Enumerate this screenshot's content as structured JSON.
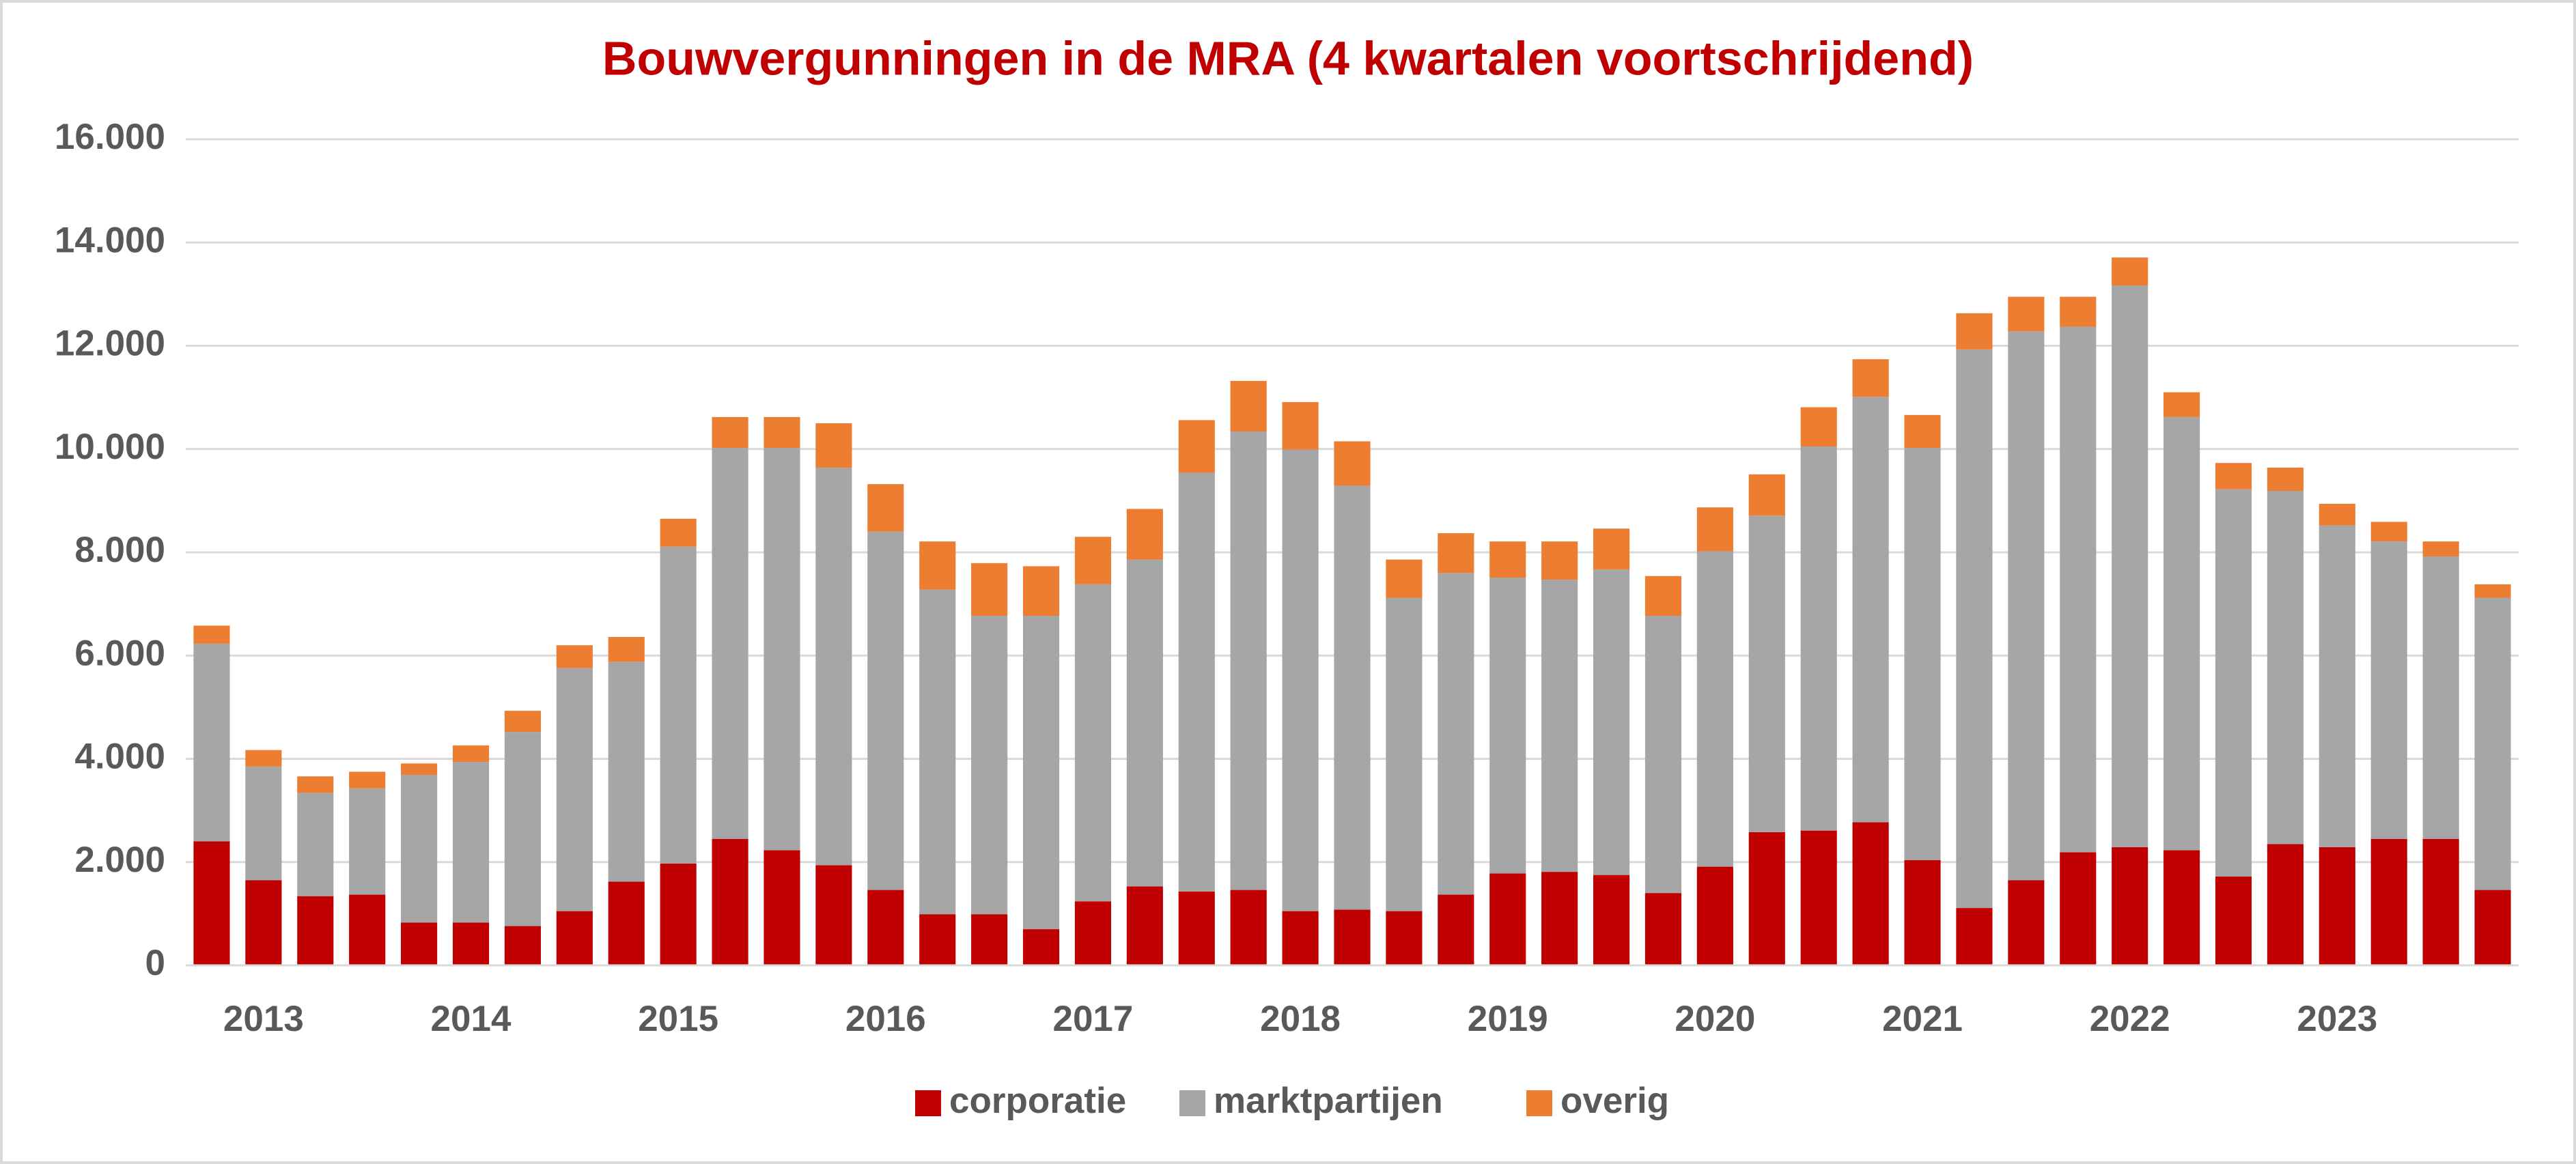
{
  "chart_data": {
    "type": "stacked_bar",
    "title": "Bouwvergunningen in de MRA (4 kwartalen voortschrijdend)",
    "categories": [
      null,
      "2013",
      null,
      null,
      null,
      "2014",
      null,
      null,
      null,
      "2015",
      null,
      null,
      null,
      "2016",
      null,
      null,
      null,
      "2017",
      null,
      null,
      null,
      "2018",
      null,
      null,
      null,
      "2019",
      null,
      null,
      null,
      "2020",
      null,
      null,
      null,
      "2021",
      null,
      null,
      null,
      "2022",
      null,
      null,
      null,
      "2023",
      null,
      null,
      null
    ],
    "series": [
      {
        "name": "corporatie",
        "color": "#c00000",
        "values": [
          2400,
          1650,
          1340,
          1370,
          830,
          830,
          760,
          1050,
          1620,
          1970,
          2450,
          2230,
          1940,
          1460,
          990,
          990,
          700,
          1240,
          1530,
          1430,
          1460,
          1050,
          1080,
          1050,
          1370,
          1780,
          1810,
          1750,
          1400,
          1910,
          2580,
          2610,
          2770,
          2040,
          1110,
          1650,
          2190,
          2290,
          2230,
          1720,
          2350,
          2290,
          2450,
          2450,
          1460
        ]
      },
      {
        "name": "marktpartijen",
        "color": "#a6a6a6",
        "values": [
          3830,
          2200,
          2000,
          2060,
          2860,
          3110,
          3760,
          4710,
          4260,
          6140,
          7570,
          7790,
          7700,
          6940,
          6290,
          5780,
          6070,
          6140,
          6330,
          8110,
          8880,
          8940,
          8210,
          6070,
          6230,
          5730,
          5660,
          5920,
          5370,
          6110,
          6130,
          7440,
          8240,
          7980,
          10820,
          10630,
          10180,
          10880,
          8390,
          7500,
          6840,
          6230,
          5760,
          5470,
          5660
        ]
      },
      {
        "name": "overig",
        "color": "#ed7d31",
        "values": [
          350,
          320,
          320,
          320,
          220,
          320,
          410,
          440,
          480,
          540,
          600,
          600,
          860,
          920,
          930,
          1020,
          960,
          920,
          980,
          1020,
          980,
          920,
          860,
          740,
          770,
          700,
          740,
          790,
          770,
          850,
          800,
          760,
          730,
          640,
          700,
          670,
          580,
          540,
          480,
          510,
          450,
          420,
          380,
          290,
          260
        ]
      }
    ],
    "ylim": [
      0,
      16000
    ],
    "yticks": [
      0,
      {
        "value": 2000,
        "label": "2.000"
      },
      {
        "value": 4000,
        "label": "4.000"
      },
      {
        "value": 6000,
        "label": "6.000"
      },
      {
        "value": 8000,
        "label": "8.000"
      },
      {
        "value": 10000,
        "label": "10.000"
      },
      {
        "value": 12000,
        "label": "12.000"
      },
      {
        "value": 14000,
        "label": "14.000"
      },
      {
        "value": 16000,
        "label": "16.000"
      }
    ],
    "grid": true,
    "legend": "bottom"
  }
}
